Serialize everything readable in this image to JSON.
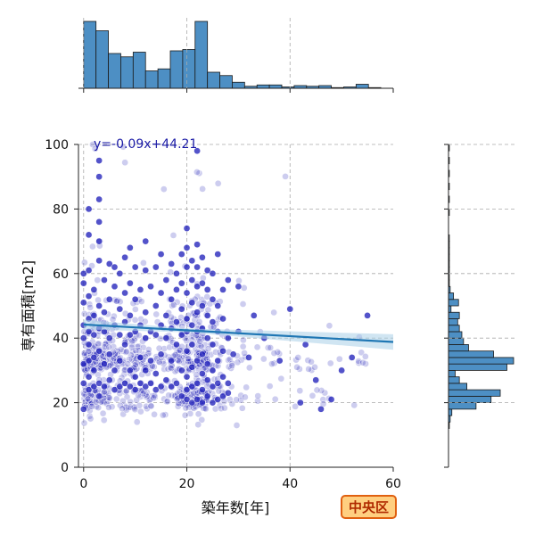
{
  "chart_data": {
    "type": "scatter",
    "title": "",
    "xlabel": "築年数[年]",
    "ylabel": "専有面積[m2]",
    "xlim": [
      -1,
      60
    ],
    "ylim": [
      0,
      100
    ],
    "x_ticks": [
      0,
      20,
      40,
      60
    ],
    "y_ticks": [
      0,
      20,
      40,
      60,
      80,
      100
    ],
    "grid": true,
    "regression": {
      "label": "y=-0.09x+44.21",
      "slope": -0.09,
      "intercept": 44.21,
      "x_range": [
        0,
        60
      ]
    },
    "badge": {
      "text": "中央区",
      "fill": "#ffcf80",
      "border": "#e06010"
    },
    "colors": {
      "points": "#1a1ab8",
      "regression_line": "#1f77b4",
      "ci_band": "#a9cfe8",
      "histogram": "#4d8fc4"
    },
    "marginal_x_hist": {
      "bin_edges": [
        0,
        2.4,
        4.8,
        7.2,
        9.6,
        12,
        14.4,
        16.8,
        19.2,
        21.6,
        24,
        26.4,
        28.8,
        31.2,
        33.6,
        36,
        38.4,
        40.8,
        43.2,
        45.6,
        48,
        50.4,
        52.8,
        55.2,
        57.6
      ],
      "counts": [
        100,
        86,
        52,
        47,
        54,
        26,
        29,
        56,
        58,
        100,
        24,
        19,
        9,
        3,
        5,
        5,
        2,
        4,
        3,
        4,
        1,
        2,
        6,
        1
      ]
    },
    "marginal_y_hist": {
      "bin_edges": [
        12,
        14,
        16,
        18,
        20,
        22,
        24,
        26,
        28,
        30,
        32,
        34,
        36,
        38,
        40,
        42,
        44,
        46,
        48,
        50,
        52,
        54,
        56,
        58,
        60,
        62,
        64,
        66,
        68,
        70,
        72,
        74,
        76,
        78,
        80,
        82,
        84,
        86,
        88,
        90,
        92,
        94,
        96,
        98,
        100
      ],
      "counts": [
        1,
        2,
        4,
        33,
        51,
        62,
        22,
        13,
        8,
        70,
        78,
        54,
        24,
        18,
        16,
        13,
        11,
        13,
        3,
        12,
        6,
        2,
        1,
        1,
        1,
        1,
        1,
        1,
        1,
        1,
        0,
        0,
        0,
        1,
        0,
        1,
        0,
        1,
        0,
        1,
        0,
        1,
        0,
        1
      ]
    },
    "series": [
      {
        "dark_points": [
          [
            0,
            18
          ],
          [
            0,
            26
          ],
          [
            0,
            32
          ],
          [
            0,
            40
          ],
          [
            0,
            44
          ],
          [
            0,
            51
          ],
          [
            0,
            57
          ],
          [
            0,
            60
          ],
          [
            1,
            24
          ],
          [
            1,
            28
          ],
          [
            1,
            33
          ],
          [
            1,
            38
          ],
          [
            1,
            42
          ],
          [
            1,
            46
          ],
          [
            1,
            53
          ],
          [
            1,
            61
          ],
          [
            1,
            72
          ],
          [
            1,
            80
          ],
          [
            2,
            25
          ],
          [
            2,
            30
          ],
          [
            2,
            34
          ],
          [
            2,
            41
          ],
          [
            2,
            47
          ],
          [
            2,
            55
          ],
          [
            3,
            22
          ],
          [
            3,
            26
          ],
          [
            3,
            36
          ],
          [
            3,
            43
          ],
          [
            3,
            50
          ],
          [
            3,
            64
          ],
          [
            3,
            70
          ],
          [
            3,
            76
          ],
          [
            3,
            83
          ],
          [
            3,
            90
          ],
          [
            3,
            95
          ],
          [
            4,
            25
          ],
          [
            4,
            32
          ],
          [
            4,
            42
          ],
          [
            4,
            48
          ],
          [
            4,
            58
          ],
          [
            5,
            27
          ],
          [
            5,
            35
          ],
          [
            5,
            40
          ],
          [
            5,
            52
          ],
          [
            5,
            63
          ],
          [
            6,
            24
          ],
          [
            6,
            30
          ],
          [
            6,
            44
          ],
          [
            6,
            56
          ],
          [
            6,
            62
          ],
          [
            7,
            25
          ],
          [
            7,
            33
          ],
          [
            7,
            41
          ],
          [
            7,
            49
          ],
          [
            7,
            60
          ],
          [
            8,
            26
          ],
          [
            8,
            38
          ],
          [
            8,
            45
          ],
          [
            8,
            54
          ],
          [
            8,
            65
          ],
          [
            9,
            25
          ],
          [
            9,
            30
          ],
          [
            9,
            41
          ],
          [
            9,
            47
          ],
          [
            9,
            57
          ],
          [
            9,
            68
          ],
          [
            10,
            24
          ],
          [
            10,
            28
          ],
          [
            10,
            42
          ],
          [
            10,
            52
          ],
          [
            10,
            62
          ],
          [
            11,
            26
          ],
          [
            11,
            34
          ],
          [
            11,
            44
          ],
          [
            11,
            55
          ],
          [
            12,
            25
          ],
          [
            12,
            30
          ],
          [
            12,
            40
          ],
          [
            12,
            48
          ],
          [
            12,
            61
          ],
          [
            12,
            70
          ],
          [
            13,
            26
          ],
          [
            13,
            33
          ],
          [
            13,
            42
          ],
          [
            13,
            56
          ],
          [
            14,
            24
          ],
          [
            14,
            29
          ],
          [
            14,
            41
          ],
          [
            14,
            50
          ],
          [
            14,
            62
          ],
          [
            15,
            25
          ],
          [
            15,
            35
          ],
          [
            15,
            44
          ],
          [
            15,
            54
          ],
          [
            15,
            66
          ],
          [
            16,
            27
          ],
          [
            16,
            40
          ],
          [
            16,
            47
          ],
          [
            16,
            58
          ],
          [
            17,
            25
          ],
          [
            17,
            33
          ],
          [
            17,
            43
          ],
          [
            17,
            52
          ],
          [
            17,
            63
          ],
          [
            18,
            26
          ],
          [
            18,
            38
          ],
          [
            18,
            45
          ],
          [
            18,
            55
          ],
          [
            18,
            60
          ],
          [
            19,
            22
          ],
          [
            19,
            30
          ],
          [
            19,
            41
          ],
          [
            19,
            49
          ],
          [
            19,
            57
          ],
          [
            19,
            66
          ],
          [
            20,
            21
          ],
          [
            20,
            24
          ],
          [
            20,
            28
          ],
          [
            20,
            36
          ],
          [
            20,
            42
          ],
          [
            20,
            46
          ],
          [
            20,
            54
          ],
          [
            20,
            62
          ],
          [
            20,
            68
          ],
          [
            20,
            74
          ],
          [
            21,
            20
          ],
          [
            21,
            25
          ],
          [
            21,
            31
          ],
          [
            21,
            38
          ],
          [
            21,
            44
          ],
          [
            21,
            51
          ],
          [
            21,
            58
          ],
          [
            21,
            64
          ],
          [
            22,
            21
          ],
          [
            22,
            26
          ],
          [
            22,
            33
          ],
          [
            22,
            42
          ],
          [
            22,
            48
          ],
          [
            22,
            56
          ],
          [
            22,
            62
          ],
          [
            22,
            69
          ],
          [
            22,
            98
          ],
          [
            23,
            20
          ],
          [
            23,
            24
          ],
          [
            23,
            29
          ],
          [
            23,
            35
          ],
          [
            23,
            43
          ],
          [
            23,
            50
          ],
          [
            23,
            57
          ],
          [
            23,
            65
          ],
          [
            24,
            22
          ],
          [
            24,
            27
          ],
          [
            24,
            32
          ],
          [
            24,
            40
          ],
          [
            24,
            47
          ],
          [
            24,
            55
          ],
          [
            24,
            61
          ],
          [
            25,
            20
          ],
          [
            25,
            25
          ],
          [
            25,
            30
          ],
          [
            25,
            38
          ],
          [
            25,
            45
          ],
          [
            25,
            52
          ],
          [
            25,
            60
          ],
          [
            26,
            21
          ],
          [
            26,
            26
          ],
          [
            26,
            33
          ],
          [
            26,
            42
          ],
          [
            26,
            50
          ],
          [
            26,
            66
          ],
          [
            27,
            22
          ],
          [
            27,
            28
          ],
          [
            27,
            36
          ],
          [
            27,
            46
          ],
          [
            27,
            55
          ],
          [
            28,
            23
          ],
          [
            28,
            26
          ],
          [
            28,
            40
          ],
          [
            28,
            58
          ],
          [
            29,
            35
          ],
          [
            30,
            42
          ],
          [
            30,
            56
          ],
          [
            32,
            34
          ],
          [
            33,
            47
          ],
          [
            35,
            40
          ],
          [
            38,
            33
          ],
          [
            40,
            49
          ],
          [
            42,
            20
          ],
          [
            43,
            38
          ],
          [
            45,
            27
          ],
          [
            46,
            18
          ],
          [
            48,
            21
          ],
          [
            50,
            30
          ],
          [
            52,
            34
          ],
          [
            55,
            47
          ]
        ]
      }
    ]
  }
}
